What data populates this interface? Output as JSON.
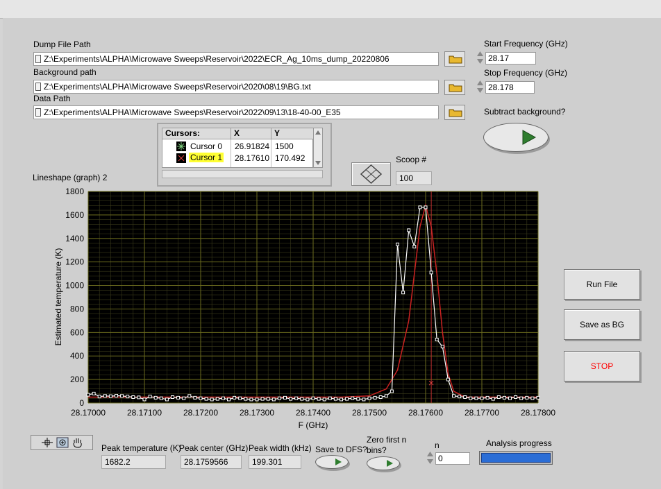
{
  "dump_file": {
    "label": "Dump File Path",
    "value": "Z:\\Experiments\\ALPHA\\Microwave Sweeps\\Reservoir\\2022\\ECR_Ag_10ms_dump_20220806"
  },
  "background": {
    "label": "Background path",
    "value": "Z:\\Experiments\\ALPHA\\Microwave Sweeps\\Reservoir\\2020\\08\\19\\BG.txt"
  },
  "data_path": {
    "label": "Data Path",
    "value": "Z:\\Experiments\\ALPHA\\Microwave Sweeps\\Reservoir\\2022\\09\\13\\18-40-00_E35"
  },
  "start_freq": {
    "label": "Start Frequency (GHz)",
    "value": "28.17"
  },
  "stop_freq": {
    "label": "Stop Frequency (GHz)",
    "value": "28.178"
  },
  "subtract_bg": {
    "label": "Subtract background?"
  },
  "cursors": {
    "headers": [
      "Cursors:",
      "X",
      "Y"
    ],
    "rows": [
      {
        "name": "Cursor 0",
        "x": "26.91824",
        "y": "1500"
      },
      {
        "name": "Cursor 1",
        "x": "28.17610",
        "y": "170.492"
      }
    ]
  },
  "scoop": {
    "label": "Scoop #",
    "value": "100"
  },
  "graph_label": "Lineshape (graph) 2",
  "buttons": {
    "run": "Run File",
    "save_bg": "Save as BG",
    "stop": "STOP"
  },
  "bottom": {
    "peak_temp": {
      "label": "Peak temperature (K)",
      "value": "1682.2"
    },
    "peak_center": {
      "label": "Peak center (GHz)",
      "value": "28.1759566"
    },
    "peak_width": {
      "label": "Peak width (kHz)",
      "value": "199.301"
    },
    "save_dfs": "Save to DFS?",
    "zero_first_1": "Zero first n",
    "zero_first_2": "bins?",
    "n": {
      "label": "n",
      "value": "0"
    },
    "progress": {
      "label": "Analysis progress",
      "fraction": 1.0
    }
  },
  "colors": {
    "plot_bg": "#000000",
    "grid": "#6b6b1e",
    "data_line": "#ffffff",
    "fit_line": "#cc2222",
    "stop_text": "#ff0000",
    "led": "#2e8b2e"
  },
  "chart_data": {
    "type": "line",
    "xlabel": "F (GHz)",
    "ylabel": "Estimated temperature (K)",
    "xlim": [
      28.17,
      28.178
    ],
    "ylim": [
      0,
      1800
    ],
    "grid": true,
    "x_ticks": [
      "28.17000",
      "28.17100",
      "28.17200",
      "28.17300",
      "28.17400",
      "28.17500",
      "28.17600",
      "28.17700",
      "28.17800"
    ],
    "y_ticks": [
      "0",
      "200",
      "400",
      "600",
      "800",
      "1000",
      "1200",
      "1400",
      "1600",
      "1800"
    ],
    "series": [
      {
        "x": [
          28.17,
          28.1701,
          28.1702,
          28.1703,
          28.1704,
          28.1705,
          28.1706,
          28.1707,
          28.1708,
          28.1709,
          28.171,
          28.1711,
          28.1712,
          28.1713,
          28.1714,
          28.1715,
          28.1716,
          28.1717,
          28.1718,
          28.1719,
          28.172,
          28.1721,
          28.1722,
          28.1723,
          28.1724,
          28.1725,
          28.1726,
          28.1727,
          28.1728,
          28.1729,
          28.173,
          28.1731,
          28.1732,
          28.1733,
          28.1734,
          28.1735,
          28.1736,
          28.1737,
          28.1738,
          28.1739,
          28.174,
          28.1741,
          28.1742,
          28.1743,
          28.1744,
          28.1745,
          28.1746,
          28.1747,
          28.1748,
          28.1749,
          28.175,
          28.1751,
          28.1752,
          28.1753,
          28.1754,
          28.1755,
          28.1756,
          28.1757,
          28.1758,
          28.1759,
          28.176,
          28.1761,
          28.1762,
          28.1763,
          28.1764,
          28.1765,
          28.1766,
          28.1767,
          28.1768,
          28.1769,
          28.177,
          28.1771,
          28.1772,
          28.1773,
          28.1774,
          28.1775,
          28.1776,
          28.1777,
          28.1778,
          28.1779,
          28.178
        ],
        "y": [
          70,
          80,
          55,
          60,
          58,
          62,
          60,
          55,
          50,
          48,
          30,
          55,
          45,
          40,
          30,
          50,
          45,
          40,
          60,
          45,
          40,
          35,
          30,
          35,
          40,
          30,
          45,
          40,
          35,
          30,
          30,
          35,
          35,
          30,
          40,
          45,
          35,
          40,
          35,
          30,
          40,
          35,
          30,
          40,
          35,
          30,
          35,
          40,
          35,
          30,
          40,
          45,
          50,
          60,
          100,
          1350,
          940,
          1470,
          1330,
          1665,
          1665,
          1110,
          540,
          480,
          200,
          60,
          55,
          50,
          40,
          40,
          40,
          45,
          35,
          50,
          45,
          40,
          50,
          40,
          45,
          40,
          45
        ]
      },
      {
        "x": [
          28.17,
          28.1745,
          28.175,
          28.1753,
          28.1755,
          28.1757,
          28.1758,
          28.1759,
          28.176,
          28.1761,
          28.1762,
          28.1763,
          28.1764,
          28.1765,
          28.1767,
          28.178
        ],
        "y": [
          50,
          50,
          60,
          120,
          280,
          700,
          1100,
          1500,
          1682,
          1500,
          1100,
          600,
          250,
          100,
          50,
          50
        ]
      }
    ],
    "cursor_x": 28.1761
  }
}
